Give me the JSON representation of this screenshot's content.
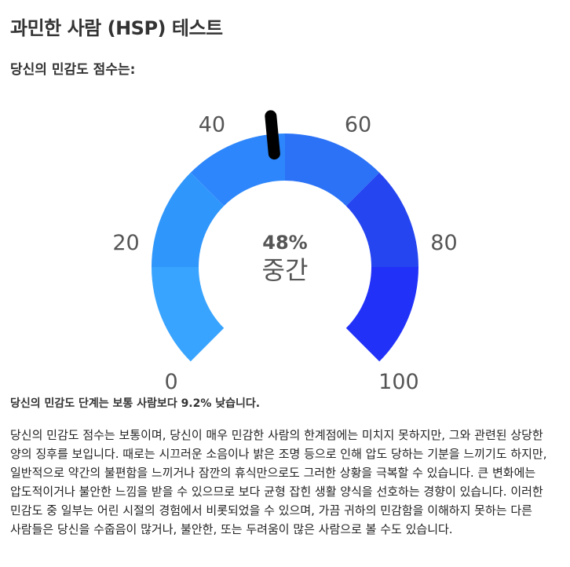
{
  "header": {
    "title": "과민한 사람 (HSP) 테스트",
    "subtitle": "당신의 민감도 점수는:"
  },
  "gauge": {
    "value_label": "48%",
    "level_label": "중간",
    "value": 48,
    "min": 0,
    "max": 100,
    "tick_labels": [
      "0",
      "20",
      "40",
      "60",
      "80",
      "100"
    ],
    "segment_colors": [
      "#39a4ff",
      "#2f96fb",
      "#2d86fb",
      "#2b72f7",
      "#2545f0",
      "#2131f8"
    ],
    "needle_color": "#000000"
  },
  "result": {
    "summary": "당신의 민감도 단계는 보통 사람보다 9.2% 낮습니다.",
    "description": "당신의 민감도 점수는 보통이며, 당신이 매우 민감한 사람의 한계점에는 미치지 못하지만, 그와 관련된 상당한 양의 징후를 보입니다. 때로는 시끄러운 소음이나 밝은 조명 등으로 인해 압도 당하는 기분을 느끼기도 하지만, 일반적으로 약간의 불편함을 느끼거나 잠깐의 휴식만으로도 그러한 상황을 극복할 수 있습니다. 큰 변화에는 압도적이거나 불안한 느낌을 받을 수 있으므로 보다 균형 잡힌 생활 양식을 선호하는 경향이 있습니다. 이러한 민감도 중 일부는 어린 시절의 경험에서 비롯되었을 수 있으며, 가끔 귀하의 민감함을 이해하지 못하는 다른 사람들은 당신을 수줍음이 많거나, 불안한, 또는 두려움이 많은 사람으로 볼 수도 있습니다."
  }
}
